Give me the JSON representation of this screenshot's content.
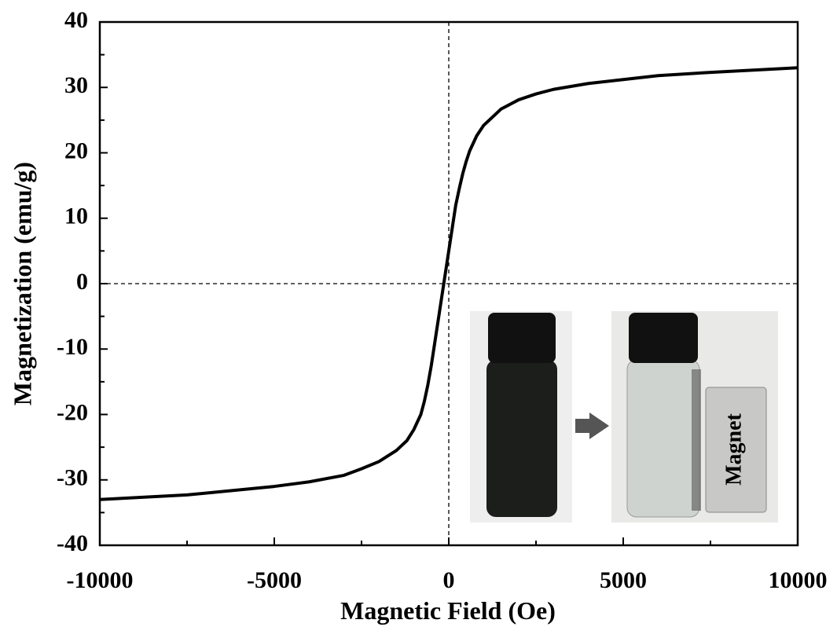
{
  "chart_data": {
    "type": "line",
    "x_label": "Magnetic Field (Oe)",
    "y_label": "Magnetization (emu/g)",
    "x": [
      -10000,
      -7500,
      -5000,
      -4000,
      -3000,
      -2500,
      -2000,
      -1500,
      -1200,
      -1000,
      -800,
      -700,
      -600,
      -500,
      -400,
      -300,
      -200,
      -100,
      0,
      100,
      200,
      300,
      400,
      500,
      600,
      800,
      1000,
      1500,
      2000,
      2500,
      3000,
      4000,
      5000,
      6000,
      7500,
      10000
    ],
    "values": [
      -33,
      -32.3,
      -31,
      -30.3,
      -29.3,
      -28.3,
      -27.2,
      -25.5,
      -24,
      -22.3,
      -20,
      -18,
      -15.5,
      -12.5,
      -9,
      -5.5,
      -2,
      1.5,
      5,
      8.5,
      12,
      14.5,
      16.8,
      18.7,
      20.3,
      22.6,
      24.2,
      26.7,
      28.1,
      29,
      29.7,
      30.6,
      31.2,
      31.8,
      32.3,
      33
    ],
    "color": "#000000",
    "xlim": [
      -10000,
      10000
    ],
    "xticks": [
      -10000,
      -5000,
      0,
      5000,
      10000
    ],
    "ylim": [
      -40,
      40
    ],
    "yticks": [
      -40,
      -30,
      -20,
      -10,
      0,
      10,
      20,
      30,
      40
    ],
    "zero_lines": true,
    "annotation": "Magnet"
  }
}
